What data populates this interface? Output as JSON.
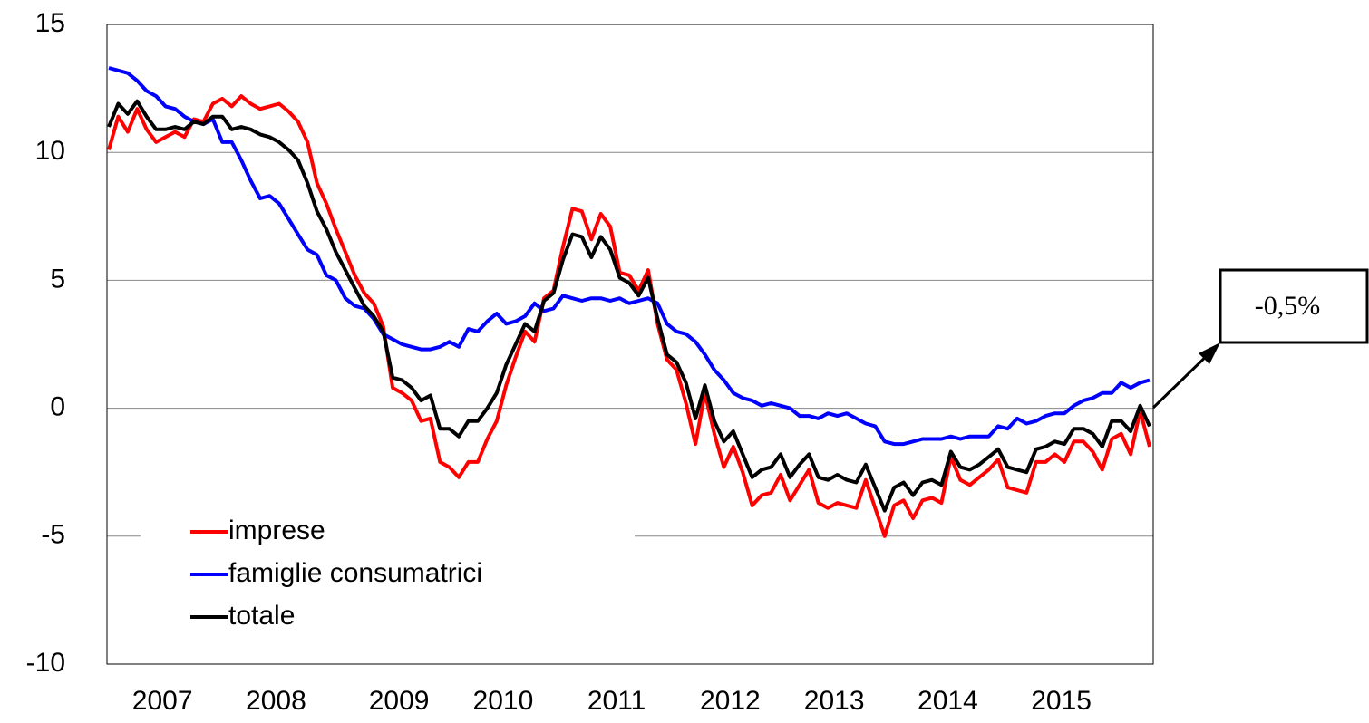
{
  "chart_data": {
    "type": "line",
    "categories": [
      null,
      null,
      null,
      null,
      null,
      "2007",
      null,
      null,
      null,
      null,
      null,
      null,
      null,
      null,
      null,
      null,
      null,
      "2008",
      null,
      null,
      null,
      null,
      null,
      null,
      null,
      null,
      null,
      null,
      null,
      null,
      "2009",
      null,
      null,
      null,
      null,
      null,
      null,
      null,
      null,
      null,
      null,
      "2010",
      null,
      null,
      null,
      null,
      null,
      null,
      null,
      null,
      null,
      null,
      null,
      "2011",
      null,
      null,
      null,
      null,
      null,
      null,
      null,
      null,
      null,
      null,
      null,
      "2012",
      null,
      null,
      null,
      null,
      null,
      null,
      null,
      null,
      null,
      null,
      "2013",
      null,
      null,
      null,
      null,
      null,
      null,
      null,
      null,
      null,
      null,
      null,
      "2014",
      null,
      null,
      null,
      null,
      null,
      null,
      null,
      null,
      null,
      null,
      null,
      "2015",
      null,
      null,
      null,
      null,
      null,
      null,
      null,
      null,
      null,
      null
    ],
    "series": [
      {
        "name": "imprese",
        "color": "#ff0000",
        "values": [
          10.1,
          11.4,
          10.8,
          11.7,
          10.9,
          10.4,
          10.6,
          10.8,
          10.6,
          11.3,
          11.2,
          11.9,
          12.1,
          11.8,
          12.2,
          11.9,
          11.7,
          11.8,
          11.9,
          11.6,
          11.2,
          10.4,
          8.8,
          8.0,
          7.0,
          6.1,
          5.2,
          4.5,
          4.1,
          3.2,
          0.8,
          0.6,
          0.3,
          -0.5,
          -0.4,
          -2.1,
          -2.3,
          -2.7,
          -2.1,
          -2.1,
          -1.2,
          -0.5,
          0.9,
          2.0,
          3.0,
          2.6,
          4.3,
          4.6,
          6.3,
          7.8,
          7.7,
          6.6,
          7.6,
          7.1,
          5.3,
          5.2,
          4.6,
          5.4,
          3.3,
          1.9,
          1.5,
          0.2,
          -1.4,
          0.6,
          -1.0,
          -2.3,
          -1.5,
          -2.5,
          -3.8,
          -3.4,
          -3.3,
          -2.6,
          -3.6,
          -3.0,
          -2.4,
          -3.7,
          -3.9,
          -3.7,
          -3.8,
          -3.9,
          -2.8,
          -3.9,
          -5.0,
          -3.8,
          -3.6,
          -4.3,
          -3.6,
          -3.5,
          -3.7,
          -1.9,
          -2.8,
          -3.0,
          -2.7,
          -2.4,
          -2.0,
          -3.1,
          -3.2,
          -3.3,
          -2.1,
          -2.1,
          -1.8,
          -2.1,
          -1.3,
          -1.3,
          -1.7,
          -2.4,
          -1.2,
          -1.0,
          -1.8,
          -0.1,
          -1.5
        ]
      },
      {
        "name": "famiglie consumatrici",
        "color": "#0000ff",
        "values": [
          13.3,
          13.2,
          13.1,
          12.8,
          12.4,
          12.2,
          11.8,
          11.7,
          11.4,
          11.2,
          11.1,
          11.3,
          10.4,
          10.4,
          9.7,
          8.9,
          8.2,
          8.3,
          8.0,
          7.4,
          6.8,
          6.2,
          6.0,
          5.2,
          5.0,
          4.3,
          4.0,
          3.9,
          3.5,
          2.9,
          2.7,
          2.5,
          2.4,
          2.3,
          2.3,
          2.4,
          2.6,
          2.4,
          3.1,
          3.0,
          3.4,
          3.7,
          3.3,
          3.4,
          3.6,
          4.1,
          3.8,
          3.9,
          4.4,
          4.3,
          4.2,
          4.3,
          4.3,
          4.2,
          4.3,
          4.1,
          4.2,
          4.3,
          4.1,
          3.3,
          3.0,
          2.9,
          2.6,
          2.1,
          1.5,
          1.1,
          0.6,
          0.4,
          0.3,
          0.1,
          0.2,
          0.1,
          0.0,
          -0.3,
          -0.3,
          -0.4,
          -0.2,
          -0.3,
          -0.2,
          -0.4,
          -0.6,
          -0.7,
          -1.3,
          -1.4,
          -1.4,
          -1.3,
          -1.2,
          -1.2,
          -1.2,
          -1.1,
          -1.2,
          -1.1,
          -1.1,
          -1.1,
          -0.7,
          -0.8,
          -0.4,
          -0.6,
          -0.5,
          -0.3,
          -0.2,
          -0.2,
          0.1,
          0.3,
          0.4,
          0.6,
          0.6,
          1.0,
          0.8,
          1.0,
          1.1
        ]
      },
      {
        "name": "totale",
        "color": "#000000",
        "values": [
          11.0,
          11.9,
          11.5,
          12.0,
          11.4,
          10.9,
          10.9,
          11.0,
          10.9,
          11.2,
          11.1,
          11.4,
          11.4,
          10.9,
          11.0,
          10.9,
          10.7,
          10.6,
          10.4,
          10.1,
          9.7,
          8.8,
          7.7,
          7.0,
          6.1,
          5.4,
          4.7,
          4.0,
          3.6,
          3.0,
          1.2,
          1.1,
          0.8,
          0.3,
          0.5,
          -0.8,
          -0.8,
          -1.1,
          -0.5,
          -0.5,
          0.0,
          0.6,
          1.7,
          2.5,
          3.3,
          3.0,
          4.2,
          4.5,
          5.8,
          6.8,
          6.7,
          5.9,
          6.7,
          6.2,
          5.1,
          4.9,
          4.4,
          5.1,
          3.5,
          2.1,
          1.8,
          1.0,
          -0.4,
          0.9,
          -0.5,
          -1.3,
          -0.9,
          -1.8,
          -2.7,
          -2.4,
          -2.3,
          -1.8,
          -2.7,
          -2.2,
          -1.8,
          -2.7,
          -2.8,
          -2.6,
          -2.8,
          -2.9,
          -2.2,
          -3.1,
          -4.0,
          -3.1,
          -2.9,
          -3.4,
          -2.9,
          -2.8,
          -3.0,
          -1.7,
          -2.3,
          -2.4,
          -2.2,
          -1.9,
          -1.6,
          -2.3,
          -2.4,
          -2.5,
          -1.6,
          -1.5,
          -1.3,
          -1.4,
          -0.8,
          -0.8,
          -1.0,
          -1.5,
          -0.5,
          -0.5,
          -0.9,
          0.1,
          -0.7
        ]
      }
    ],
    "ylim": [
      -10,
      15
    ],
    "yticks": [
      -10,
      -5,
      0,
      5,
      10,
      15
    ],
    "grid": true,
    "legend": "lower-left",
    "annotation": "-0,5%"
  }
}
